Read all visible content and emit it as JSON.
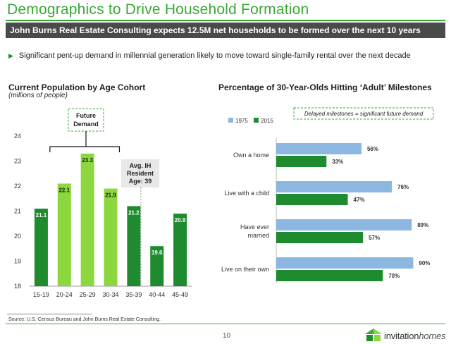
{
  "header": {
    "title": "Demographics to Drive Household Formation",
    "subtitle": "John Burns Real Estate Consulting expects 12.5M net households to be formed over the next 10 years"
  },
  "bullet": {
    "icon": "triangle-bullet-icon",
    "text": "Significant pent-up demand in millennial generation likely to move toward single-family rental over the next decade"
  },
  "left_chart_title": "Current Population by Age Cohort",
  "left_chart_subtitle": "(millions of people)",
  "right_chart_title": "Percentage of 30-Year-Olds Hitting ‘Adult’ Milestones",
  "chart_data": [
    {
      "type": "bar",
      "title": "Current Population by Age Cohort",
      "subtitle": "(millions of people)",
      "categories": [
        "15-19",
        "20-24",
        "25-29",
        "30-34",
        "35-39",
        "40-44",
        "45-49"
      ],
      "values": [
        21.1,
        22.1,
        23.3,
        21.9,
        21.2,
        19.6,
        20.9
      ],
      "data_labels": [
        "21.1",
        "22.1",
        "23.3",
        "21.9",
        "21.2",
        "19.6",
        "20.9"
      ],
      "bar_colors": [
        "#1e8c2e",
        "#8cd63e",
        "#8cd63e",
        "#8cd63e",
        "#1e8c2e",
        "#1e8c2e",
        "#1e8c2e"
      ],
      "ylim": [
        18,
        24
      ],
      "yticks": [
        "18",
        "19",
        "20",
        "21",
        "22",
        "23",
        "24"
      ],
      "grid": false,
      "annotations": {
        "future_demand": "Future\nDemand",
        "avg_resident_age": "Avg. IH\nResident\nAge: 39"
      }
    },
    {
      "type": "bar",
      "orientation": "horizontal",
      "title": "Percentage of 30-Year-Olds Hitting ‘Adult’ Milestones",
      "categories": [
        "Own a home",
        "Live with a child",
        "Have ever\nmarried",
        "Live on their own"
      ],
      "series": [
        {
          "name": "1975",
          "values": [
            56,
            76,
            89,
            90
          ],
          "labels": [
            "56%",
            "76%",
            "89%",
            "90%"
          ],
          "color": "#8cb7e0"
        },
        {
          "name": "2015",
          "values": [
            33,
            47,
            57,
            70
          ],
          "labels": [
            "33%",
            "47%",
            "57%",
            "70%"
          ],
          "color": "#1e8c2e"
        }
      ],
      "xlim": [
        0,
        100
      ],
      "legend": "top-left",
      "grid": false,
      "annotation": "Delayed milestones = significant future demand"
    }
  ],
  "footer": {
    "source": "Source:  U.S. Census Bureau and John Burns Real Estate Consulting.",
    "page_number": "10",
    "logo_name": "invitation-homes-logo",
    "logo_text_a": "invitation",
    "logo_text_b": "homes"
  },
  "colors": {
    "brand_green": "#3aa935",
    "dark_green": "#1e8c2e",
    "light_green": "#8cd63e",
    "light_blue": "#8cb7e0",
    "header_gray": "#4a4a4a"
  }
}
